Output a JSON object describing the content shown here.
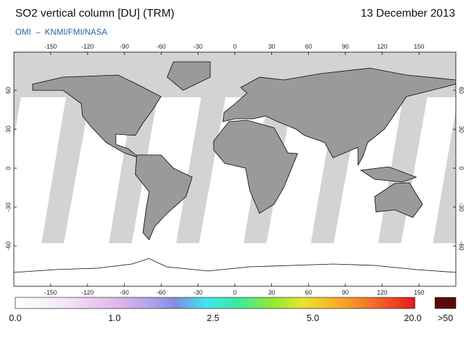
{
  "header": {
    "title": "SO2 vertical column [DU] (TRM)",
    "date": "13 December 2013",
    "source": "OMI  –  KNMI/FMI/NASA"
  },
  "map": {
    "lon_ticks": [
      -150,
      -120,
      -90,
      -60,
      -30,
      0,
      30,
      60,
      90,
      120,
      150
    ],
    "lat_ticks": [
      60,
      30,
      0,
      -30,
      -60
    ]
  },
  "colorbar": {
    "labels": [
      "0.0",
      "1.0",
      "2.5",
      "5.0",
      "20.0"
    ],
    "overflow_label": ">50"
  }
}
